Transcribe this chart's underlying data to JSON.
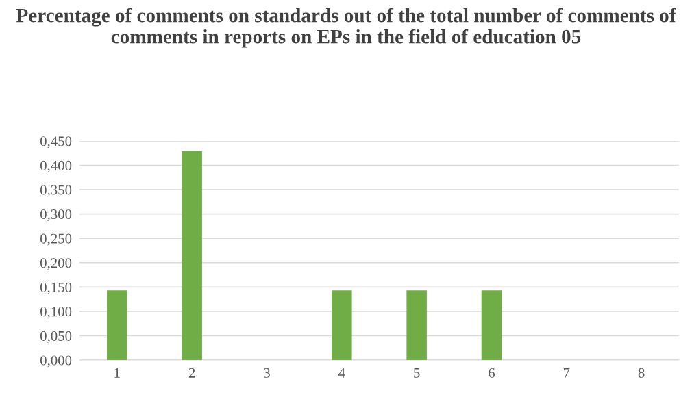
{
  "chart_data": {
    "type": "bar",
    "title": "Percentage of comments on standards out of the total number of comments of comments in reports on EPs in the field of education 05",
    "categories": [
      "1",
      "2",
      "3",
      "4",
      "5",
      "6",
      "7",
      "8"
    ],
    "values": [
      0.143,
      0.429,
      0,
      0.143,
      0.143,
      0.143,
      0,
      0
    ],
    "color": "#70ad47",
    "ylim": [
      0,
      0.45
    ],
    "yticks": [
      {
        "value": 0,
        "label": "0,000"
      },
      {
        "value": 0.05,
        "label": "0,050"
      },
      {
        "value": 0.1,
        "label": "0,100"
      },
      {
        "value": 0.15,
        "label": "0,150"
      },
      {
        "value": 0.2,
        "label": "0,200"
      },
      {
        "value": 0.25,
        "label": "0,250"
      },
      {
        "value": 0.3,
        "label": "0,300"
      },
      {
        "value": 0.35,
        "label": "0,350"
      },
      {
        "value": 0.4,
        "label": "0,400"
      },
      {
        "value": 0.45,
        "label": "0,450"
      }
    ],
    "grid": "y",
    "legend": false
  }
}
